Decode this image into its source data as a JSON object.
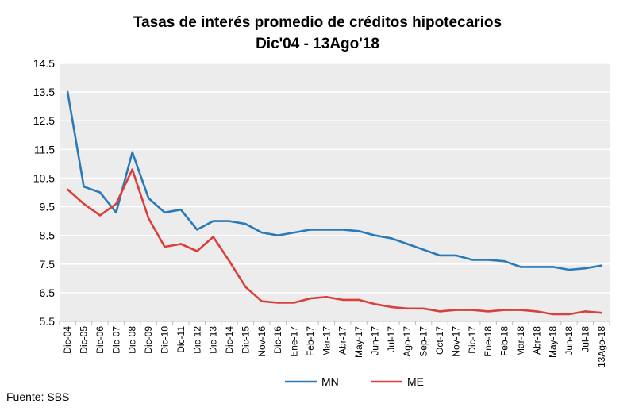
{
  "title_line1": "Tasas de interés promedio de créditos hipotecarios",
  "title_line2": "Dic'04 - 13Ago'18",
  "source": "Fuente: SBS",
  "colors": {
    "MN": "#2a7ab8",
    "ME": "#d9403b",
    "plot_bg": "#ececec",
    "grid": "#ffffff"
  },
  "chart_data": {
    "type": "line",
    "x": [
      "Dic-04",
      "Dic-05",
      "Dic-06",
      "Dic-07",
      "Dic-08",
      "Dic-09",
      "Dic-10",
      "Dic-11",
      "Dic-12",
      "Dic-13",
      "Dic-14",
      "Dic-15",
      "Nov-16",
      "Dic-16",
      "Ene-17",
      "Feb-17",
      "Mar-17",
      "Abr-17",
      "May-17",
      "Jun-17",
      "Jul-17",
      "Ago-17",
      "Sep-17",
      "Oct-17",
      "Nov-17",
      "Dic-17",
      "Ene-18",
      "Feb-18",
      "Mar-18",
      "Abr-18",
      "May-18",
      "Jun-18",
      "Jul-18",
      "13Ago-18"
    ],
    "series": [
      {
        "name": "MN",
        "values": [
          13.5,
          10.2,
          10.0,
          9.3,
          11.4,
          9.8,
          9.3,
          9.4,
          8.7,
          9.0,
          9.0,
          8.9,
          8.6,
          8.5,
          8.6,
          8.7,
          8.7,
          8.7,
          8.65,
          8.5,
          8.4,
          8.2,
          8.0,
          7.8,
          7.8,
          7.65,
          7.65,
          7.6,
          7.4,
          7.4,
          7.4,
          7.3,
          7.35,
          7.45
        ]
      },
      {
        "name": "ME",
        "values": [
          10.1,
          9.6,
          9.2,
          9.6,
          10.8,
          9.1,
          8.1,
          8.2,
          7.95,
          8.45,
          7.6,
          6.7,
          6.2,
          6.15,
          6.15,
          6.3,
          6.35,
          6.25,
          6.25,
          6.1,
          6.0,
          5.95,
          5.95,
          5.85,
          5.9,
          5.9,
          5.85,
          5.9,
          5.9,
          5.85,
          5.75,
          5.75,
          5.85,
          5.8
        ]
      }
    ],
    "y_ticks": [
      "14.5",
      "13.5",
      "12.5",
      "11.5",
      "10.5",
      "9.5",
      "8.5",
      "7.5",
      "6.5",
      "5.5"
    ],
    "ylim": [
      5.5,
      14.5
    ],
    "grid": true,
    "legend_position": "bottom"
  }
}
